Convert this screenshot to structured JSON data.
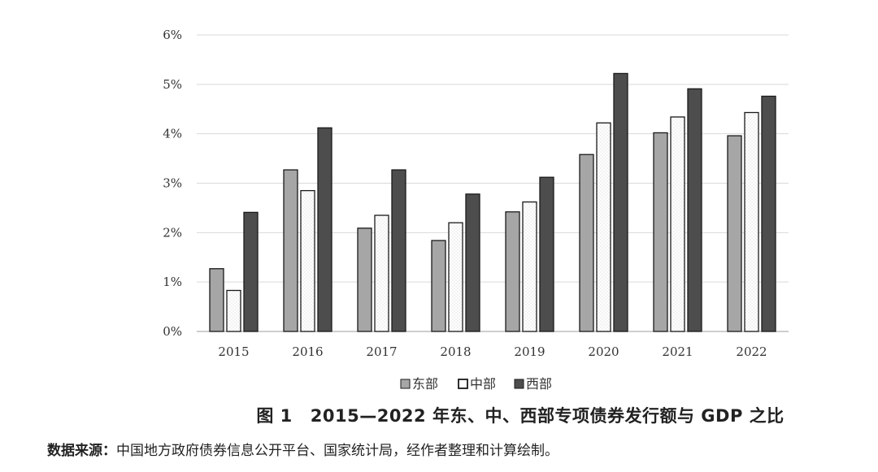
{
  "chart_data": {
    "type": "bar",
    "title": "2015—2022 年东、中、西部专项债券发行额与 GDP 之比",
    "figure_number": "图 1",
    "categories": [
      "2015",
      "2016",
      "2017",
      "2018",
      "2019",
      "2020",
      "2021",
      "2022"
    ],
    "series": [
      {
        "name": "东部",
        "values": [
          1.27,
          3.27,
          2.09,
          1.84,
          2.42,
          3.58,
          4.02,
          3.96
        ]
      },
      {
        "name": "中部",
        "values": [
          0.83,
          2.85,
          2.35,
          2.2,
          2.62,
          4.22,
          4.34,
          4.43
        ]
      },
      {
        "name": "西部",
        "values": [
          2.41,
          4.12,
          3.27,
          2.78,
          3.12,
          5.22,
          4.91,
          4.76
        ]
      }
    ],
    "ylim": [
      0,
      6
    ],
    "yticks": [
      "0%",
      "1%",
      "2%",
      "3%",
      "4%",
      "5%",
      "6%"
    ],
    "grid": true,
    "legend_position": "bottom",
    "colors": {
      "东部": "#a6a6a6",
      "中部": "#ffffff",
      "西部": "#4d4d4d"
    }
  },
  "source": {
    "label": "数据来源：",
    "text": "中国地方政府债券信息公开平台、国家统计局，经作者整理和计算绘制。"
  }
}
